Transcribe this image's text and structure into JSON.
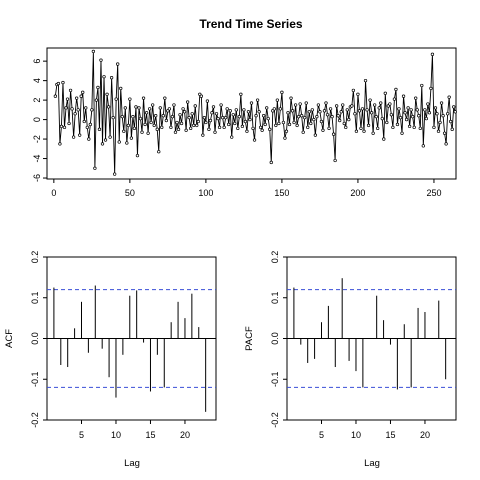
{
  "chart_data": [
    {
      "type": "line",
      "title": "Trend Time Series",
      "xlabel": "",
      "ylabel": "",
      "xlim": [
        0,
        260
      ],
      "ylim": [
        -6,
        7
      ],
      "x_ticks": [
        "0",
        "50",
        "100",
        "150",
        "200",
        "250"
      ],
      "y_ticks": [
        "-6",
        "-4",
        "-2",
        "0",
        "2",
        "4",
        "6"
      ],
      "grid": false,
      "markers": "open-circles",
      "series": [
        {
          "values": [
            2.4,
            3.6,
            3.7,
            -2.5,
            -0.7,
            3.8,
            -0.8,
            1.2,
            2.1,
            -0.4,
            3.0,
            1.1,
            -1.8,
            0.6,
            2.2,
            1.0,
            -1.6,
            2.4,
            2.8,
            -0.2,
            1.2,
            -0.8,
            -2.0,
            -0.5,
            1.0,
            7.0,
            -5.0,
            2.0,
            3.3,
            -1.0,
            6.1,
            -2.5,
            4.4,
            -2.1,
            2.6,
            1.3,
            -1.8,
            4.3,
            0.2,
            -5.6,
            2.1,
            5.7,
            -2.3,
            3.2,
            0.3,
            -1.2,
            1.2,
            -2.4,
            -0.6,
            2.1,
            -1.9,
            0.3,
            -0.9,
            1.3,
            -3.7,
            1.2,
            0.1,
            -1.3,
            2.2,
            -0.5,
            0.7,
            -1.4,
            1.1,
            -0.3,
            1.5,
            -0.6,
            0.4,
            -1.0,
            -3.3,
            1.2,
            -0.8,
            0.4,
            2.2,
            -0.1,
            0.9,
            1.1,
            -0.8,
            0.3,
            1.5,
            -1.3,
            -0.3,
            -1.0,
            0.5,
            -0.4,
            1.1,
            0.8,
            -1.1,
            1.8,
            0.2,
            -0.9,
            0.6,
            -0.6,
            1.4,
            -0.6,
            -0.2,
            2.6,
            2.4,
            -1.6,
            0.2,
            -0.3,
            1.9,
            -1.0,
            -0.1,
            0.7,
            1.3,
            -1.3,
            0.6,
            0.1,
            -0.8,
            1.5,
            0.2,
            -0.8,
            0.2,
            1.1,
            -0.5,
            0.9,
            -1.8,
            0.5,
            -0.4,
            1.0,
            -0.9,
            0.3,
            2.6,
            -0.7,
            1.0,
            -0.2,
            -1.2,
            0.8,
            0.0,
            1.7,
            -0.9,
            -2.1,
            0.4,
            2.0,
            0.8,
            -0.8,
            -1.1,
            0.4,
            -0.5,
            1.2,
            0.1,
            -1.0,
            -4.4,
            0.9,
            1.1,
            -0.6,
            2.0,
            -0.4,
            1.1,
            2.8,
            -0.3,
            -1.9,
            -1.2,
            0.7,
            -0.5,
            2.2,
            0.9,
            -0.3,
            1.5,
            -0.6,
            0.3,
            1.6,
            0.4,
            -1.3,
            0.2,
            1.7,
            -0.8,
            0.8,
            -0.4,
            1.0,
            0.0,
            -1.6,
            0.3,
            1.5,
            0.8,
            -0.2,
            -1.1,
            0.9,
            1.7,
            0.5,
            -0.9,
            1.1,
            0.3,
            -1.5,
            -4.2,
            1.4,
            0.4,
            -0.1,
            0.8,
            1.5,
            -0.4,
            -0.8,
            1.0,
            0.0,
            1.3,
            1.4,
            3.0,
            0.6,
            -1.2,
            2.6,
            0.9,
            -0.9,
            1.1,
            -1.2,
            4.0,
            1.0,
            -0.6,
            2.0,
            0.7,
            -1.4,
            1.5,
            0.3,
            -0.9,
            1.2,
            1.7,
            0.1,
            -2.0,
            2.7,
            -0.3,
            1.4,
            1.6,
            0.5,
            -0.8,
            2.1,
            3.1,
            -0.5,
            1.1,
            0.2,
            -1.4,
            2.4,
            0.7,
            0.0,
            1.2,
            -0.7,
            1.0,
            0.3,
            -0.8,
            2.2,
            1.0,
            0.4,
            -0.9,
            3.5,
            -2.7,
            1.0,
            0.1,
            1.6,
            0.7,
            3.2,
            6.7,
            -0.8,
            1.2,
            0.6,
            -1.2,
            -0.3,
            1.7,
            0.4,
            -1.4,
            -2.5,
            0.6,
            2.3,
            -0.2,
            -1.0,
            1.3,
            0.8
          ]
        }
      ]
    },
    {
      "type": "bar",
      "title": "",
      "xlabel": "Lag",
      "ylabel": "ACF",
      "xlim": [
        0,
        24.5
      ],
      "ylim": [
        -0.2,
        0.2
      ],
      "x_ticks": [
        "5",
        "10",
        "15",
        "20"
      ],
      "y_ticks": [
        "-0.2",
        "-0.1",
        "0.0",
        "0.1",
        "0.2"
      ],
      "confidence_band": 0.12,
      "lags": [
        1,
        2,
        3,
        4,
        5,
        6,
        7,
        8,
        9,
        10,
        11,
        12,
        13,
        14,
        15,
        16,
        17,
        18,
        19,
        20,
        21,
        22,
        23,
        24
      ],
      "values": [
        0.125,
        -0.065,
        -0.07,
        0.025,
        0.09,
        -0.035,
        0.13,
        -0.025,
        -0.095,
        -0.145,
        -0.04,
        0.105,
        0.118,
        -0.01,
        -0.13,
        -0.04,
        -0.12,
        0.04,
        0.09,
        0.05,
        0.11,
        0.028,
        -0.18,
        0.0
      ]
    },
    {
      "type": "bar",
      "title": "",
      "xlabel": "Lag",
      "ylabel": "PACF",
      "xlim": [
        0,
        24.5
      ],
      "ylim": [
        -0.2,
        0.2
      ],
      "x_ticks": [
        "5",
        "10",
        "15",
        "20"
      ],
      "y_ticks": [
        "-0.2",
        "-0.1",
        "0.0",
        "0.1",
        "0.2"
      ],
      "confidence_band": 0.12,
      "lags": [
        1,
        2,
        3,
        4,
        5,
        6,
        7,
        8,
        9,
        10,
        11,
        12,
        13,
        14,
        15,
        16,
        17,
        18,
        19,
        20,
        21,
        22,
        23
      ],
      "values": [
        0.125,
        -0.015,
        -0.06,
        -0.05,
        0.04,
        0.08,
        -0.07,
        0.148,
        -0.055,
        -0.08,
        -0.12,
        0.0,
        0.105,
        0.045,
        -0.015,
        -0.125,
        0.035,
        -0.12,
        0.075,
        0.065,
        0.0,
        0.093,
        -0.1
      ]
    }
  ]
}
